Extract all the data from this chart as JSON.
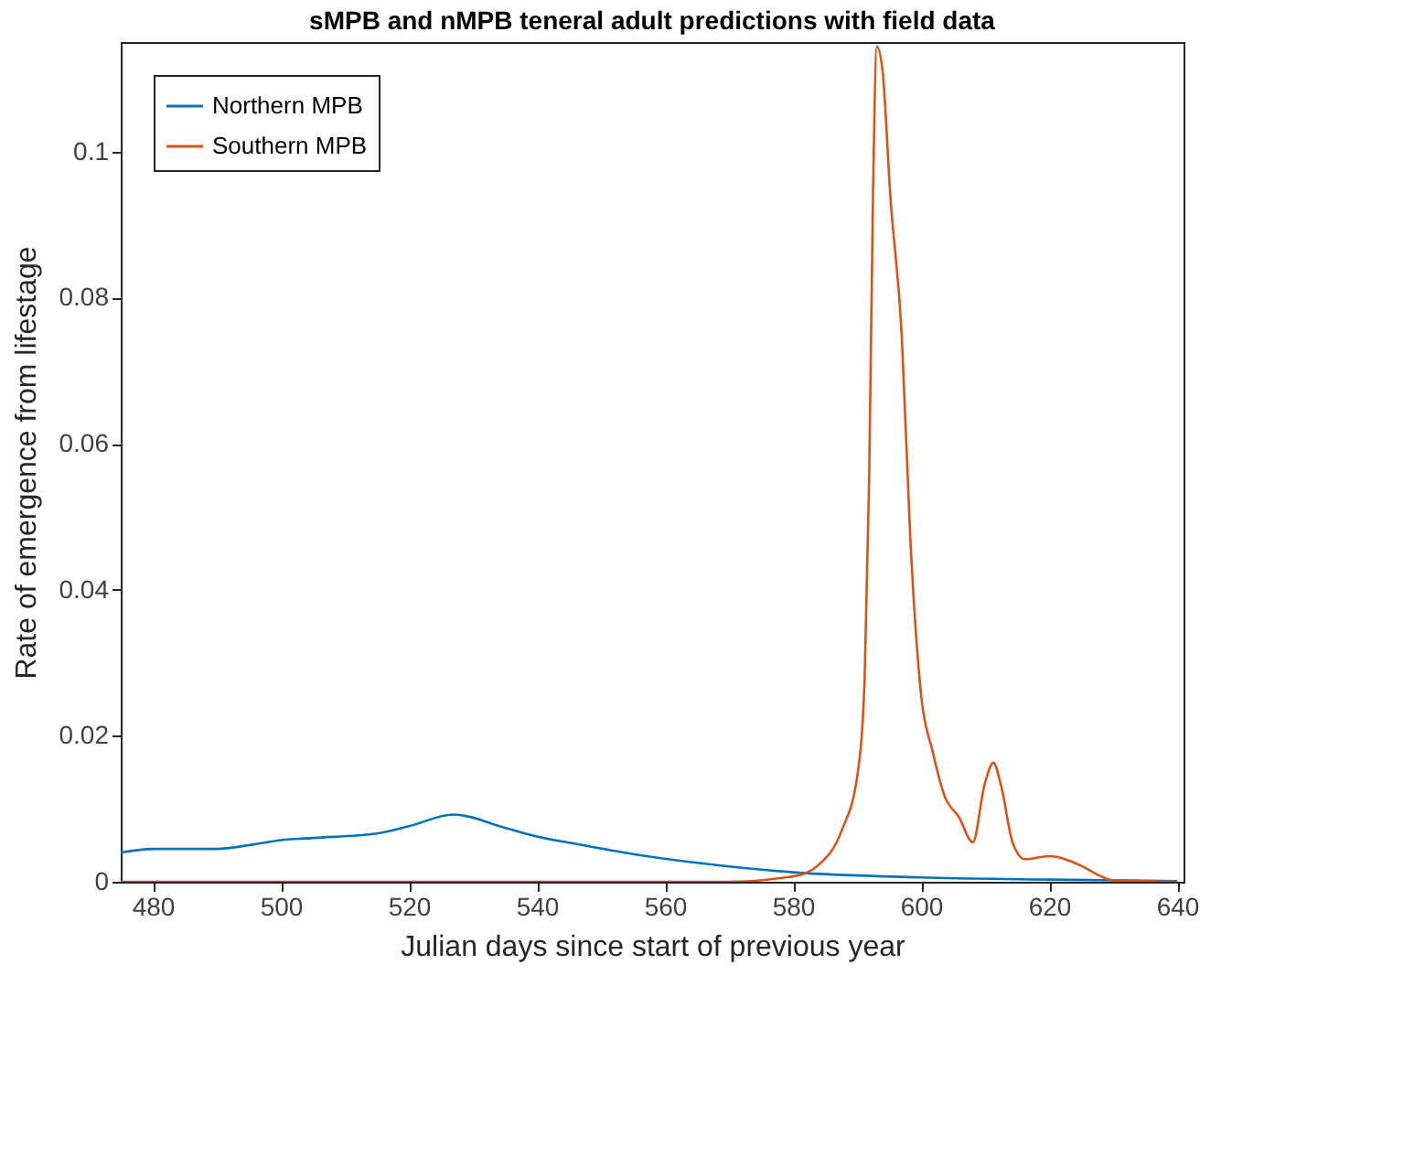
{
  "chart_data": {
    "type": "line",
    "title": "sMPB and nMPB  teneral adult predictions with field data",
    "xlabel": "Julian days since start of previous year",
    "ylabel": "Rate of emergence from lifestage",
    "xlim": [
      475,
      641
    ],
    "xticks": [
      480,
      500,
      520,
      540,
      560,
      580,
      600,
      620,
      640
    ],
    "ylim": [
      0,
      0.115
    ],
    "yticks": [
      0,
      0.02,
      0.04,
      0.06,
      0.08,
      0.1
    ],
    "grid": false,
    "legend": "top left",
    "marker": "none",
    "line_style": "solid",
    "series": [
      {
        "name": "Northern MPB",
        "color": "#0072bd",
        "x": [
          475,
          480,
          490,
          495,
          500,
          505,
          515,
          520,
          527,
          535,
          540,
          546,
          555,
          565,
          580,
          600,
          620,
          640
        ],
        "values": [
          0.004,
          0.0045,
          0.0045,
          0.005,
          0.0057,
          0.006,
          0.0066,
          0.0076,
          0.0092,
          0.0074,
          0.0062,
          0.0052,
          0.0038,
          0.0026,
          0.0013,
          0.0006,
          0.0003,
          0.0001
        ]
      },
      {
        "name": "Southern MPB",
        "color": "#d95319",
        "x": [
          475,
          570,
          578,
          582,
          584,
          587.6,
          590.1,
          591.2,
          591.9,
          592.5,
          593.1,
          594,
          595.2,
          597,
          598.3,
          600,
          601.8,
          603.7,
          605.9,
          608.1,
          609.9,
          611.3,
          612.5,
          614.3,
          616.2,
          620,
          625,
          628,
          630,
          640
        ],
        "values": [
          0,
          0,
          0.0005,
          0.0012,
          0.0023,
          0.007,
          0.0148,
          0.028,
          0.0552,
          0.094,
          0.1144,
          0.111,
          0.094,
          0.0747,
          0.0475,
          0.0257,
          0.0179,
          0.0117,
          0.0089,
          0.0054,
          0.0132,
          0.0163,
          0.0132,
          0.0054,
          0.0031,
          0.0035,
          0.0022,
          0.0008,
          0.0002,
          0
        ]
      }
    ]
  }
}
